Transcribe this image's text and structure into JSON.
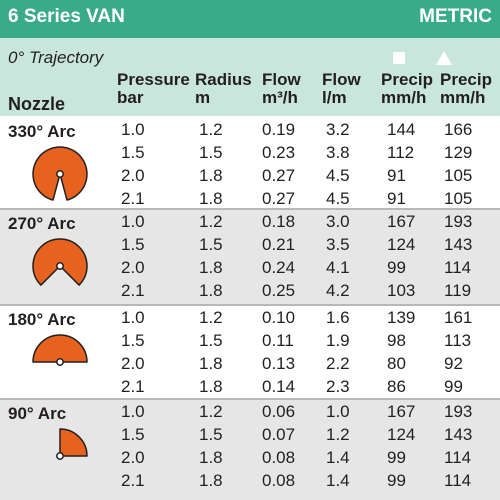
{
  "title": {
    "series": "6 Series VAN",
    "units": "METRIC"
  },
  "header": {
    "trajectory": "0° Trajectory",
    "nozzle_label": "Nozzle",
    "columns": [
      {
        "top": "Pressure",
        "bottom": "bar"
      },
      {
        "top": "Radius",
        "bottom": "m"
      },
      {
        "top": "Flow",
        "bottom": "m³/h"
      },
      {
        "top": "Flow",
        "bottom": "l/m"
      },
      {
        "top": "Precip",
        "bottom": "mm/h",
        "symbol": "square"
      },
      {
        "top": "Precip",
        "bottom": "mm/h",
        "symbol": "triangle"
      }
    ]
  },
  "colors": {
    "title_bar": "#3aab89",
    "header_bg": "#c9e6dc",
    "shade_bg": "#e6e6e6",
    "nozzle_fill": "#e8621f"
  },
  "groups": [
    {
      "label": "330° Arc",
      "arc_degrees": 330,
      "rows": [
        [
          "1.0",
          "1.2",
          "0.19",
          "3.2",
          "144",
          "166"
        ],
        [
          "1.5",
          "1.5",
          "0.23",
          "3.8",
          "112",
          "129"
        ],
        [
          "2.0",
          "1.8",
          "0.27",
          "4.5",
          "91",
          "105"
        ],
        [
          "2.1",
          "1.8",
          "0.27",
          "4.5",
          "91",
          "105"
        ]
      ]
    },
    {
      "label": "270° Arc",
      "arc_degrees": 270,
      "rows": [
        [
          "1.0",
          "1.2",
          "0.18",
          "3.0",
          "167",
          "193"
        ],
        [
          "1.5",
          "1.5",
          "0.21",
          "3.5",
          "124",
          "143"
        ],
        [
          "2.0",
          "1.8",
          "0.24",
          "4.1",
          "99",
          "114"
        ],
        [
          "2.1",
          "1.8",
          "0.25",
          "4.2",
          "103",
          "119"
        ]
      ]
    },
    {
      "label": "180° Arc",
      "arc_degrees": 180,
      "rows": [
        [
          "1.0",
          "1.2",
          "0.10",
          "1.6",
          "139",
          "161"
        ],
        [
          "1.5",
          "1.5",
          "0.11",
          "1.9",
          "98",
          "113"
        ],
        [
          "2.0",
          "1.8",
          "0.13",
          "2.2",
          "80",
          "92"
        ],
        [
          "2.1",
          "1.8",
          "0.14",
          "2.3",
          "86",
          "99"
        ]
      ]
    },
    {
      "label": "90° Arc",
      "arc_degrees": 90,
      "rows": [
        [
          "1.0",
          "1.2",
          "0.06",
          "1.0",
          "167",
          "193"
        ],
        [
          "1.5",
          "1.5",
          "0.07",
          "1.2",
          "124",
          "143"
        ],
        [
          "2.0",
          "1.8",
          "0.08",
          "1.4",
          "99",
          "114"
        ],
        [
          "2.1",
          "1.8",
          "0.08",
          "1.4",
          "99",
          "114"
        ]
      ]
    }
  ]
}
